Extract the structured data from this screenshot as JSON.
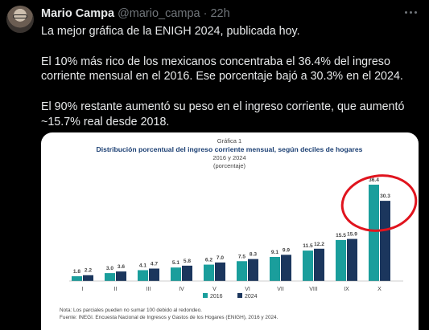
{
  "tweet": {
    "author_name": "Mario Campa",
    "handle": "@mario_campa",
    "separator": "·",
    "time": "22h",
    "paragraphs": [
      "La mejor gráfica de la ENIGH 2024, publicada hoy.",
      "El 10% más rico de los mexicanos concentraba el 36.4% del ingreso corriente mensual en el 2016. Ese porcentaje bajó a 30.3% en el 2024.",
      "El 90% restante aumentó su peso en el ingreso corriente, que aumentó ~15.7% real desde 2018."
    ]
  },
  "colors": {
    "series_2016": "#1a9e9c",
    "series_2024": "#1b365d",
    "annotation": "#e0141e",
    "title": "#1b3f73"
  },
  "chart_data": {
    "type": "bar",
    "caption": "Gráfica 1",
    "title": "Distribución porcentual del ingreso corriente mensual, según deciles de hogares",
    "subtitle": "2016 y 2024",
    "unit_note": "(porcentaje)",
    "categories": [
      "I",
      "II",
      "III",
      "IV",
      "V",
      "VI",
      "VII",
      "VIII",
      "IX",
      "X"
    ],
    "series": [
      {
        "name": "2016",
        "values": [
          1.8,
          3.0,
          4.1,
          5.1,
          6.2,
          7.5,
          9.1,
          11.5,
          15.5,
          36.4
        ]
      },
      {
        "name": "2024",
        "values": [
          2.2,
          3.6,
          4.7,
          5.8,
          7.0,
          8.3,
          9.9,
          12.2,
          15.9,
          30.3
        ]
      }
    ],
    "ylim": [
      0,
      40
    ],
    "grid": false,
    "legend": "bottom-center",
    "notes": {
      "nota": "Nota:   Los parciales pueden no sumar 100 debido al redondeo.",
      "fuente": "Fuente: INEGI. Encuesta Nacional de Ingresos y Gastos de los Hogares (ENIGH), 2016 y 2024."
    }
  }
}
